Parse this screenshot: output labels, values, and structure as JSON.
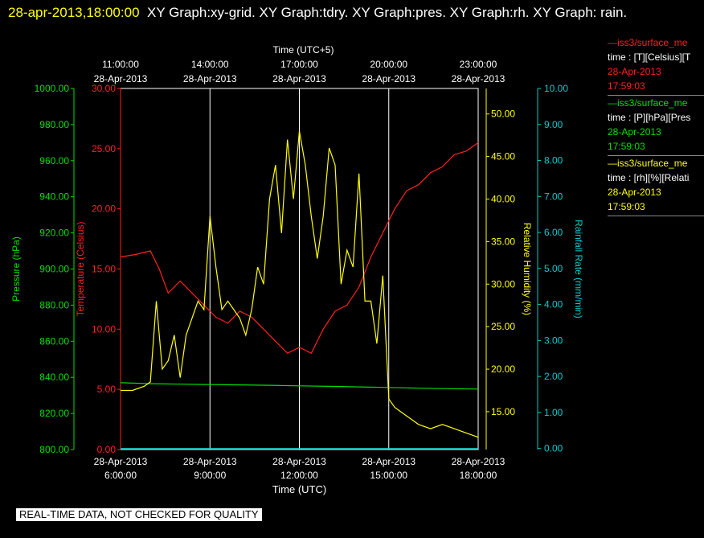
{
  "header": {
    "timestamp": "28-apr-2013,18:00:00",
    "graphs": "XY Graph:xy-grid.  XY Graph:tdry.  XY Graph:pres.  XY Graph:rh.  XY Graph: rain."
  },
  "legend": [
    {
      "line1": "—iss3/surface_me",
      "line2": "time : [T][Celsius][T",
      "line3": "28-Apr-2013",
      "line4": "17:59:03",
      "color": "#ff2020"
    },
    {
      "line1": "—iss3/surface_me",
      "line2": "time : [P][hPa][Pres",
      "line3": "28-Apr-2013",
      "line4": "17:59:03",
      "color": "#00e000"
    },
    {
      "line1": "—iss3/surface_me",
      "line2": "time : [rh][%][Relati",
      "line3": "28-Apr-2013",
      "line4": "17:59:03",
      "color": "#ffff00"
    }
  ],
  "notice": "REAL-TIME DATA, NOT CHECKED FOR QUALITY",
  "chart_data": {
    "type": "line",
    "top_axis_title": "Time (UTC+5)",
    "bottom_axis_title": "Time (UTC)",
    "x_range_hours_utc": [
      6,
      18
    ],
    "bottom_ticks": [
      {
        "x": 6,
        "line1": "28-Apr-2013",
        "line2": "6:00:00"
      },
      {
        "x": 9,
        "line1": "28-Apr-2013",
        "line2": "9:00:00"
      },
      {
        "x": 12,
        "line1": "28-Apr-2013",
        "line2": "12:00:00"
      },
      {
        "x": 15,
        "line1": "28-Apr-2013",
        "line2": "15:00:00"
      },
      {
        "x": 18,
        "line1": "28-Apr-2013",
        "line2": "18:00:00"
      }
    ],
    "top_ticks": [
      {
        "x": 6,
        "line1": "11:00:00",
        "line2": "28-Apr-2013"
      },
      {
        "x": 9,
        "line1": "14:00:00",
        "line2": "28-Apr-2013"
      },
      {
        "x": 12,
        "line1": "17:00:00",
        "line2": "28-Apr-2013"
      },
      {
        "x": 15,
        "line1": "20:00:00",
        "line2": "28-Apr-2013"
      },
      {
        "x": 18,
        "line1": "23:00:00",
        "line2": "28-Apr-2013"
      }
    ],
    "grid": true,
    "axes": {
      "pressure": {
        "label": "Pressure (hPa)",
        "min": 800,
        "max": 1000,
        "ticks": [
          "800.00",
          "820.00",
          "840.00",
          "860.00",
          "880.00",
          "900.00",
          "920.00",
          "940.00",
          "960.00",
          "980.00",
          "1000.00"
        ],
        "color": "#00e000"
      },
      "temperature": {
        "label": "Temperature (Celsius)",
        "min": 0,
        "max": 30,
        "ticks": [
          "0.00",
          "5.00",
          "10.00",
          "15.00",
          "20.00",
          "25.00",
          "30.00"
        ],
        "color": "#ff2020"
      },
      "rh": {
        "label": "Relative Humidity (%)",
        "min": 10.55,
        "max": 53.0,
        "ticks": [
          "15.00",
          "20.00",
          "25.00",
          "30.00",
          "35.00",
          "40.00",
          "45.00",
          "50.00"
        ],
        "color": "#ffff00"
      },
      "rain": {
        "label": "Rainfall Rate (mm/min)",
        "min": -0.03,
        "max": 10.0,
        "ticks": [
          "0.00",
          "1.00",
          "2.00",
          "3.00",
          "4.00",
          "5.00",
          "6.00",
          "7.00",
          "8.00",
          "9.00",
          "10.00"
        ],
        "color": "#00cccc"
      }
    },
    "series": [
      {
        "name": "Temperature",
        "axis": "temperature",
        "color": "#ff2020",
        "x": [
          6.0,
          6.5,
          7.0,
          7.3,
          7.6,
          8.0,
          8.4,
          8.8,
          9.2,
          9.6,
          10.0,
          10.4,
          10.8,
          11.2,
          11.6,
          12.0,
          12.4,
          12.8,
          13.2,
          13.6,
          14.0,
          14.4,
          14.8,
          15.2,
          15.6,
          16.0,
          16.4,
          16.8,
          17.2,
          17.6,
          18.0
        ],
        "y": [
          16.0,
          16.2,
          16.5,
          15.0,
          13.0,
          14.0,
          13.0,
          12.0,
          11.0,
          10.5,
          11.5,
          11.0,
          10.0,
          9.0,
          8.0,
          8.5,
          8.0,
          10.0,
          11.5,
          12.0,
          13.5,
          16.0,
          18.0,
          20.0,
          21.5,
          22.0,
          23.0,
          23.5,
          24.5,
          24.8,
          25.5
        ]
      },
      {
        "name": "Pressure",
        "axis": "pressure",
        "color": "#00e000",
        "x": [
          6.0,
          7.0,
          8.0,
          9.0,
          10.0,
          11.0,
          12.0,
          13.0,
          14.0,
          15.0,
          16.0,
          17.0,
          18.0
        ],
        "y": [
          837.0,
          836.5,
          836.2,
          836.0,
          835.8,
          835.6,
          835.3,
          835.0,
          834.7,
          834.4,
          834.0,
          833.7,
          833.5
        ]
      },
      {
        "name": "Relative Humidity",
        "axis": "rh",
        "color": "#ffff00",
        "x": [
          6.0,
          6.4,
          6.8,
          7.0,
          7.2,
          7.4,
          7.6,
          7.8,
          8.0,
          8.2,
          8.4,
          8.6,
          8.8,
          9.0,
          9.2,
          9.4,
          9.6,
          9.8,
          10.0,
          10.2,
          10.4,
          10.6,
          10.8,
          11.0,
          11.2,
          11.4,
          11.6,
          11.8,
          12.0,
          12.2,
          12.4,
          12.6,
          12.8,
          13.0,
          13.2,
          13.4,
          13.6,
          13.8,
          14.0,
          14.2,
          14.4,
          14.6,
          14.8,
          15.0,
          15.2,
          15.6,
          16.0,
          16.4,
          16.8,
          17.2,
          17.6,
          18.0
        ],
        "y": [
          17.5,
          17.5,
          18.0,
          18.5,
          28.0,
          20.0,
          21.0,
          24.0,
          19.0,
          24.0,
          26.0,
          28.0,
          27.0,
          38.0,
          32.0,
          27.0,
          28.0,
          27.0,
          26.0,
          24.0,
          27.0,
          32.0,
          30.0,
          40.0,
          44.0,
          36.0,
          47.0,
          40.0,
          48.0,
          44.0,
          38.0,
          33.0,
          38.0,
          46.0,
          44.0,
          30.0,
          34.0,
          32.0,
          43.0,
          28.0,
          28.0,
          23.0,
          31.0,
          16.5,
          15.5,
          14.5,
          13.5,
          13.0,
          13.5,
          13.0,
          12.5,
          12.0
        ]
      },
      {
        "name": "Rainfall Rate",
        "axis": "rain",
        "color": "#00cccc",
        "x": [
          6.0,
          18.0
        ],
        "y": [
          0.0,
          0.0
        ]
      }
    ]
  }
}
